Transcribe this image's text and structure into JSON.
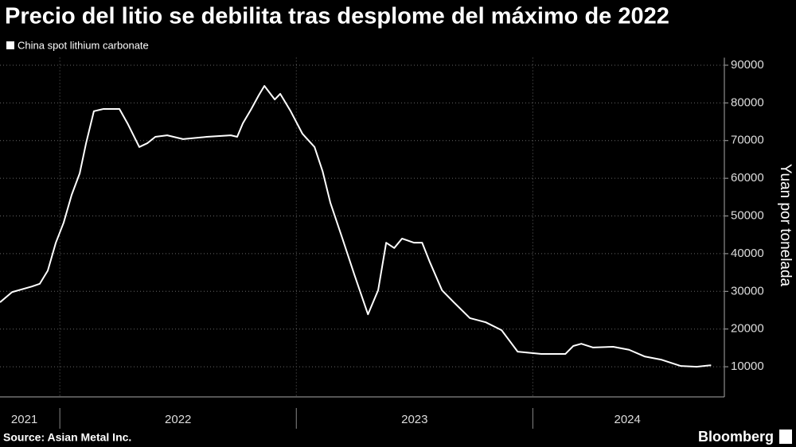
{
  "chart_data": {
    "type": "line",
    "title": "Precio del litio se debilita tras desplome del máximo de 2022",
    "y_axis_label": "Yuan por tonelada",
    "source": "Source: Asian Metal Inc.",
    "brand": "Bloomberg",
    "grid": true,
    "legend": "top-left",
    "x": [
      2021.747,
      2021.798,
      2021.882,
      2021.915,
      2021.949,
      2021.983,
      2022.016,
      2022.05,
      2022.084,
      2022.111,
      2022.144,
      2022.185,
      2022.252,
      2022.286,
      2022.336,
      2022.37,
      2022.404,
      2022.454,
      2022.521,
      2022.622,
      2022.723,
      2022.75,
      2022.774,
      2022.808,
      2022.841,
      2022.865,
      2022.909,
      2022.932,
      2022.976,
      2023.026,
      2023.077,
      2023.111,
      2023.144,
      2023.195,
      2023.245,
      2023.303,
      2023.346,
      2023.38,
      2023.414,
      2023.447,
      2023.498,
      2023.532,
      2023.565,
      2023.616,
      2023.666,
      2023.734,
      2023.801,
      2023.868,
      2023.936,
      2024.036,
      2024.138,
      2024.171,
      2024.205,
      2024.255,
      2024.34,
      2024.407,
      2024.474,
      2024.542,
      2024.626,
      2024.693,
      2024.754
    ],
    "series": [
      {
        "name": "China spot lithium carbonate",
        "color": "#ffffff",
        "values": [
          27100,
          29800,
          31300,
          32000,
          35500,
          42900,
          48200,
          55600,
          61300,
          69300,
          77800,
          78400,
          78400,
          74600,
          68300,
          69300,
          71000,
          71400,
          70400,
          71000,
          71400,
          71000,
          74600,
          78200,
          82000,
          84500,
          80900,
          82400,
          77800,
          71800,
          68300,
          61900,
          53500,
          44000,
          34500,
          23900,
          30300,
          42900,
          41500,
          44000,
          42900,
          42900,
          37700,
          30300,
          27100,
          22900,
          21800,
          19700,
          14000,
          13400,
          13400,
          15500,
          16100,
          15100,
          15300,
          14500,
          12700,
          11900,
          10200,
          10000,
          10400
        ]
      }
    ],
    "xlim": [
      2021.747,
      2024.81
    ],
    "xticks": [
      {
        "value": 2021.85,
        "label": "2021"
      },
      {
        "value": 2022.5,
        "label": "2022"
      },
      {
        "value": 2023.5,
        "label": "2023"
      },
      {
        "value": 2024.4,
        "label": "2024"
      }
    ],
    "year_dividers": [
      2022,
      2023,
      2024
    ],
    "ylim": [
      2000,
      92000
    ],
    "yticks": [
      10000,
      20000,
      30000,
      40000,
      50000,
      60000,
      70000,
      80000,
      90000
    ]
  }
}
